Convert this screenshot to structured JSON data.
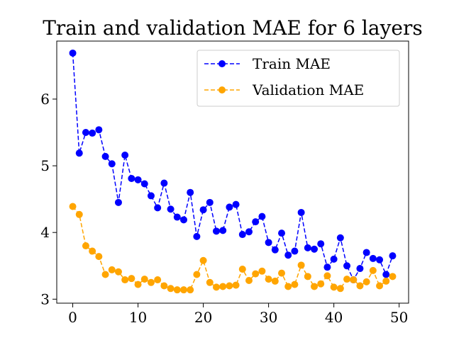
{
  "chart_data": {
    "type": "line",
    "title": "Train and validation MAE for 6 layers",
    "xlabel": "",
    "ylabel": "",
    "xlim": [
      -2.45,
      51.45
    ],
    "ylim": [
      2.94,
      6.87
    ],
    "xticks": [
      0,
      10,
      20,
      30,
      40,
      50
    ],
    "yticks": [
      3,
      4,
      5,
      6
    ],
    "grid": false,
    "legend_position": "top-right",
    "x": [
      0,
      1,
      2,
      3,
      4,
      5,
      6,
      7,
      8,
      9,
      10,
      11,
      12,
      13,
      14,
      15,
      16,
      17,
      18,
      19,
      20,
      21,
      22,
      23,
      24,
      25,
      26,
      27,
      28,
      29,
      30,
      31,
      32,
      33,
      34,
      35,
      36,
      37,
      38,
      39,
      40,
      41,
      42,
      43,
      44,
      45,
      46,
      47,
      48,
      49
    ],
    "series": [
      {
        "name": "Train MAE",
        "color": "#0000ff",
        "linestyle": "dashed",
        "marker": "circle",
        "values": [
          6.69,
          5.19,
          5.5,
          5.49,
          5.54,
          5.14,
          5.03,
          4.45,
          5.16,
          4.81,
          4.79,
          4.73,
          4.55,
          4.37,
          4.74,
          4.35,
          4.23,
          4.19,
          4.6,
          3.94,
          4.34,
          4.45,
          4.02,
          4.03,
          4.38,
          4.42,
          3.97,
          4.01,
          4.16,
          4.24,
          3.85,
          3.74,
          3.99,
          3.66,
          3.72,
          4.3,
          3.77,
          3.75,
          3.83,
          3.48,
          3.6,
          3.92,
          3.5,
          3.29,
          3.46,
          3.7,
          3.61,
          3.59,
          3.37,
          3.65
        ]
      },
      {
        "name": "Validation MAE",
        "color": "#ffa500",
        "linestyle": "dashed",
        "marker": "circle",
        "values": [
          4.39,
          4.27,
          3.8,
          3.72,
          3.64,
          3.37,
          3.44,
          3.41,
          3.29,
          3.31,
          3.22,
          3.3,
          3.25,
          3.29,
          3.2,
          3.16,
          3.14,
          3.14,
          3.14,
          3.37,
          3.58,
          3.25,
          3.18,
          3.19,
          3.2,
          3.21,
          3.45,
          3.28,
          3.38,
          3.42,
          3.3,
          3.27,
          3.39,
          3.19,
          3.22,
          3.51,
          3.34,
          3.19,
          3.23,
          3.35,
          3.18,
          3.16,
          3.3,
          3.29,
          3.2,
          3.26,
          3.43,
          3.2,
          3.27,
          3.34
        ]
      }
    ]
  }
}
